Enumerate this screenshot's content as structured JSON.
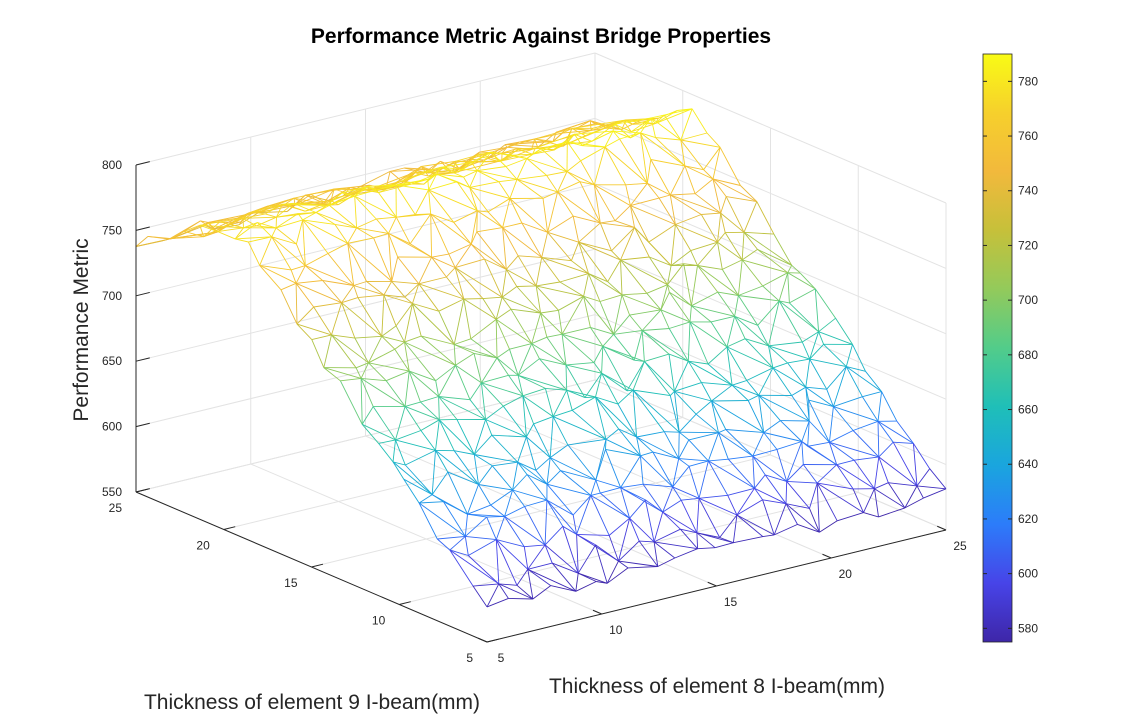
{
  "chart_data": {
    "type": "3d-mesh",
    "title": "Performance Metric Against Bridge Properties",
    "xlabel": "Thickness of element 8 I-beam(mm)",
    "ylabel": "Thickness of element 9 I-beam(mm)",
    "zlabel": "Performance Metric",
    "xlim": [
      5,
      25
    ],
    "ylim": [
      5,
      25
    ],
    "zlim": [
      550,
      800
    ],
    "x_ticks": [
      "5",
      "10",
      "15",
      "20",
      "25"
    ],
    "y_ticks": [
      "5",
      "10",
      "15",
      "20",
      "25"
    ],
    "z_ticks": [
      "550",
      "600",
      "650",
      "700",
      "750",
      "800"
    ],
    "colorbar": {
      "range": [
        575,
        790
      ],
      "ticks": [
        "580",
        "600",
        "620",
        "640",
        "660",
        "680",
        "700",
        "720",
        "740",
        "760",
        "780"
      ],
      "colormap": [
        "#3e26a8",
        "#4744e8",
        "#2c7cfa",
        "#1aa5de",
        "#1fbfb8",
        "#52cc8a",
        "#93ca5b",
        "#c6c03a",
        "#f2b93c",
        "#f6d02c",
        "#f9fb15"
      ]
    },
    "grid": true,
    "surface_description": "Performance rises roughly linearly with element 9 thickness from ~575 to ~780, with a plateau at high thickness; weak dependence on element 8."
  }
}
